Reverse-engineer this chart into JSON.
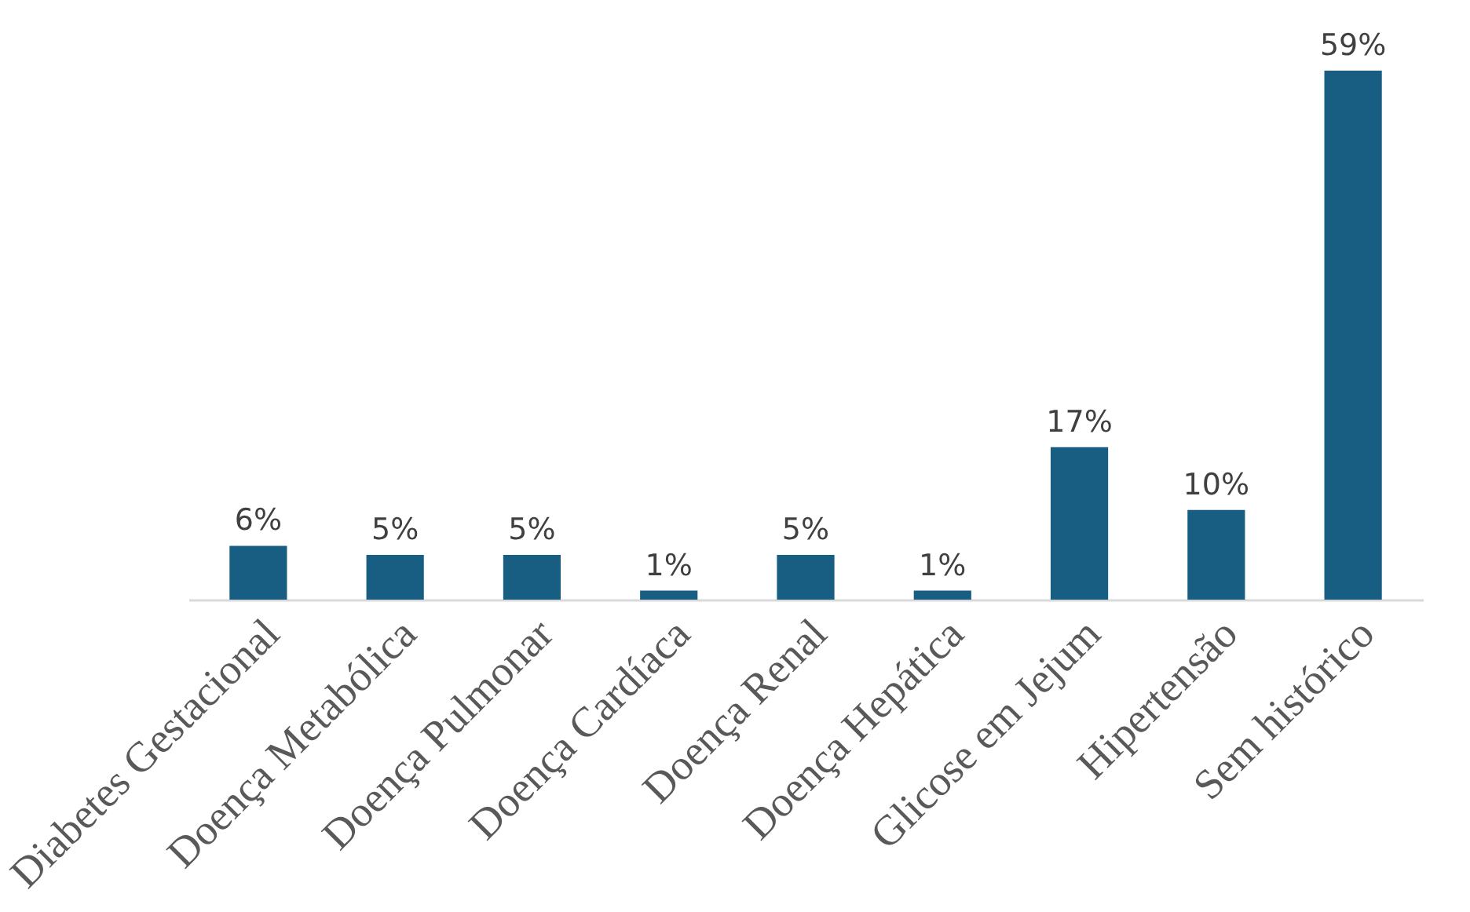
{
  "chart_data": {
    "type": "bar",
    "categories": [
      "Diabetes Gestacional",
      "Doença Metabólica",
      "Doença Pulmonar",
      "Doença Cardíaca",
      "Doença Renal",
      "Doença Hepática",
      "Glicose em Jejum",
      "Hipertensão",
      "Sem histórico"
    ],
    "values": [
      6,
      5,
      5,
      1,
      5,
      1,
      17,
      10,
      59
    ],
    "value_labels": [
      "6%",
      "5%",
      "5%",
      "1%",
      "5%",
      "1%",
      "17%",
      "10%",
      "59%"
    ],
    "color": "#175e82"
  }
}
